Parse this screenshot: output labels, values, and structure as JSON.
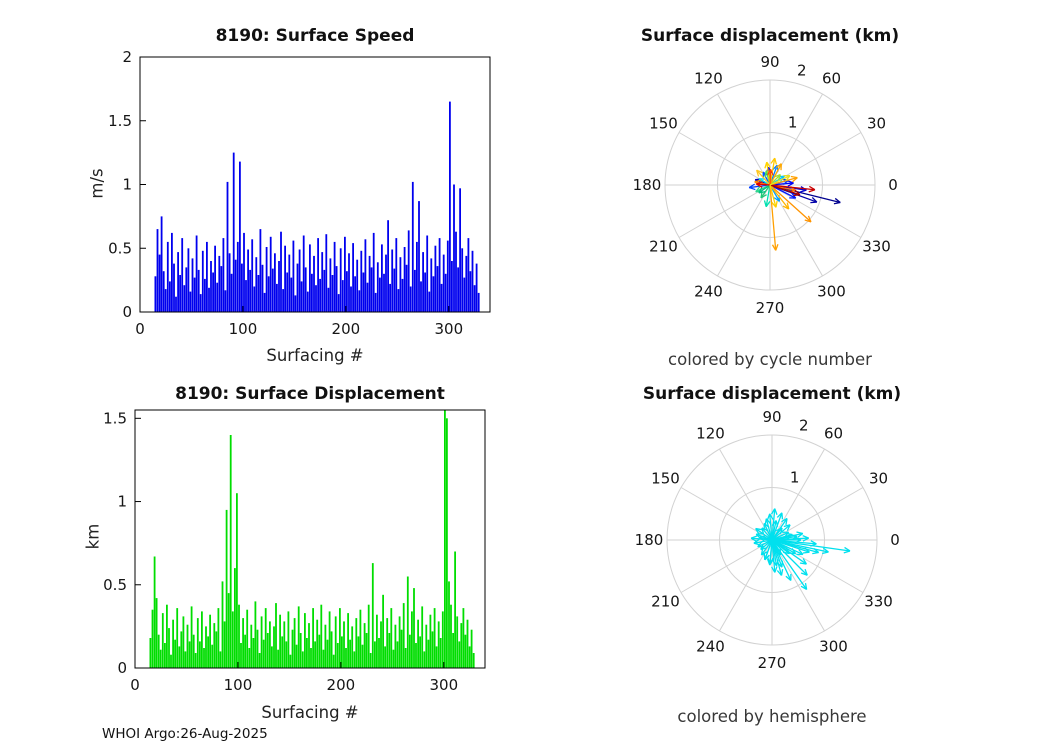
{
  "figure": {
    "footer": "WHOI Argo:26-Aug-2025",
    "background": "#FFFFFF"
  },
  "chart_data": [
    {
      "id": "surface-speed",
      "type": "bar",
      "title": "8190: Surface Speed",
      "xlabel": "Surfacing #",
      "ylabel": "m/s",
      "bar_color": "#0000EE",
      "xlim": [
        0,
        340
      ],
      "ylim": [
        0,
        2
      ],
      "xticks": [
        0,
        100,
        200,
        300
      ],
      "yticks": [
        0,
        0.5,
        1,
        1.5,
        2
      ],
      "x_start": 15,
      "x_step": 2,
      "values": [
        0.28,
        0.65,
        0.45,
        0.75,
        0.32,
        0.18,
        0.55,
        0.24,
        0.62,
        0.38,
        0.12,
        0.47,
        0.29,
        0.58,
        0.21,
        0.35,
        0.5,
        0.16,
        0.42,
        0.27,
        0.6,
        0.33,
        0.14,
        0.48,
        0.26,
        0.55,
        0.19,
        0.4,
        0.31,
        0.52,
        0.23,
        0.44,
        0.36,
        0.58,
        0.17,
        1.02,
        0.46,
        0.3,
        1.25,
        0.41,
        0.55,
        1.18,
        0.38,
        0.62,
        0.25,
        0.49,
        0.33,
        0.57,
        0.2,
        0.43,
        0.29,
        0.65,
        0.37,
        0.15,
        0.51,
        0.28,
        0.59,
        0.34,
        0.46,
        0.22,
        0.4,
        0.63,
        0.18,
        0.52,
        0.31,
        0.45,
        0.27,
        0.56,
        0.13,
        0.38,
        0.49,
        0.24,
        0.6,
        0.35,
        0.16,
        0.53,
        0.3,
        0.44,
        0.21,
        0.58,
        0.26,
        0.47,
        0.33,
        0.61,
        0.19,
        0.42,
        0.29,
        0.55,
        0.36,
        0.14,
        0.5,
        0.25,
        0.59,
        0.32,
        0.46,
        0.2,
        0.54,
        0.28,
        0.41,
        0.17,
        0.48,
        0.31,
        0.57,
        0.23,
        0.44,
        0.35,
        0.62,
        0.15,
        0.39,
        0.27,
        0.53,
        0.3,
        0.45,
        0.72,
        0.22,
        0.49,
        0.34,
        0.58,
        0.18,
        0.43,
        0.26,
        0.51,
        0.37,
        0.64,
        0.2,
        1.02,
        0.33,
        0.55,
        0.87,
        0.24,
        0.47,
        0.31,
        0.6,
        0.16,
        0.42,
        0.28,
        0.52,
        0.36,
        0.58,
        0.22,
        0.45,
        0.3,
        0.56,
        1.65,
        0.4,
        1.0,
        0.63,
        0.35,
        0.97,
        0.5,
        0.27,
        0.44,
        0.58,
        0.32,
        0.48,
        0.21,
        0.38,
        0.15
      ]
    },
    {
      "id": "surface-displacement",
      "type": "bar",
      "title": "8190: Surface Displacement",
      "xlabel": "Surfacing #",
      "ylabel": "km",
      "bar_color": "#00DD00",
      "xlim": [
        0,
        340
      ],
      "ylim": [
        0,
        1.55
      ],
      "xticks": [
        0,
        100,
        200,
        300
      ],
      "yticks": [
        0,
        0.5,
        1,
        1.5
      ],
      "x_start": 15,
      "x_step": 2,
      "values": [
        0.18,
        0.35,
        0.67,
        0.42,
        0.2,
        0.11,
        0.33,
        0.15,
        0.38,
        0.24,
        0.08,
        0.29,
        0.17,
        0.36,
        0.13,
        0.22,
        0.31,
        0.1,
        0.26,
        0.16,
        0.37,
        0.2,
        0.09,
        0.3,
        0.16,
        0.34,
        0.12,
        0.25,
        0.19,
        0.32,
        0.14,
        0.27,
        0.22,
        0.36,
        0.1,
        0.52,
        0.28,
        0.95,
        0.45,
        1.4,
        0.34,
        0.6,
        1.05,
        0.38,
        0.15,
        0.3,
        0.2,
        0.35,
        0.12,
        0.26,
        0.18,
        0.4,
        0.23,
        0.09,
        0.31,
        0.17,
        0.36,
        0.21,
        0.28,
        0.13,
        0.25,
        0.39,
        0.11,
        0.32,
        0.19,
        0.28,
        0.16,
        0.34,
        0.08,
        0.23,
        0.3,
        0.14,
        0.37,
        0.21,
        0.1,
        0.33,
        0.18,
        0.27,
        0.12,
        0.36,
        0.16,
        0.29,
        0.2,
        0.38,
        0.11,
        0.26,
        0.17,
        0.34,
        0.22,
        0.08,
        0.31,
        0.15,
        0.36,
        0.19,
        0.28,
        0.12,
        0.33,
        0.17,
        0.25,
        0.1,
        0.3,
        0.19,
        0.35,
        0.14,
        0.27,
        0.21,
        0.38,
        0.09,
        0.63,
        0.16,
        0.32,
        0.18,
        0.28,
        0.44,
        0.13,
        0.3,
        0.21,
        0.36,
        0.11,
        0.26,
        0.16,
        0.31,
        0.23,
        0.39,
        0.12,
        0.55,
        0.2,
        0.34,
        0.48,
        0.15,
        0.29,
        0.19,
        0.37,
        0.1,
        0.26,
        0.17,
        0.32,
        0.22,
        0.36,
        0.13,
        0.28,
        0.18,
        0.34,
        1.55,
        1.5,
        0.52,
        0.38,
        0.21,
        0.7,
        0.31,
        0.16,
        0.27,
        0.36,
        0.2,
        0.29,
        0.13,
        0.23,
        0.09
      ]
    },
    {
      "id": "polar-by-cycle",
      "type": "polar-quiver",
      "title": "Surface displacement (km)",
      "caption": "colored by cycle number",
      "rmax": 2,
      "rticks": [
        1,
        2
      ],
      "angle_ticks": [
        0,
        30,
        60,
        90,
        120,
        150,
        180,
        210,
        240,
        270,
        300,
        330
      ],
      "arrows": [
        {
          "a": -14,
          "r": 1.38,
          "c": "#00008F"
        },
        {
          "a": -20,
          "r": 0.95,
          "c": "#0000A8"
        },
        {
          "a": -8,
          "r": 0.7,
          "c": "#0000D0"
        },
        {
          "a": -27,
          "r": 0.55,
          "c": "#0018FF"
        },
        {
          "a": 5,
          "r": 0.45,
          "c": "#0000F5"
        },
        {
          "a": 14,
          "r": 0.36,
          "c": "#0030FF"
        },
        {
          "a": 95,
          "r": 0.34,
          "c": "#0000FF"
        },
        {
          "a": 118,
          "r": 0.28,
          "c": "#0055FF"
        },
        {
          "a": 70,
          "r": 0.4,
          "c": "#0080FF"
        },
        {
          "a": 160,
          "r": 0.3,
          "c": "#0000C0"
        },
        {
          "a": 187,
          "r": 0.4,
          "c": "#0040FF"
        },
        {
          "a": -60,
          "r": 0.36,
          "c": "#00A0FF"
        },
        {
          "a": 32,
          "r": 0.32,
          "c": "#00C8FF"
        },
        {
          "a": 150,
          "r": 0.24,
          "c": "#00E0F0"
        },
        {
          "a": -100,
          "r": 0.42,
          "c": "#00E0B0"
        },
        {
          "a": 205,
          "r": 0.3,
          "c": "#30D890"
        },
        {
          "a": -125,
          "r": 0.3,
          "c": "#20C878"
        },
        {
          "a": 105,
          "r": 0.28,
          "c": "#50E050"
        },
        {
          "a": -145,
          "r": 0.26,
          "c": "#00C080"
        },
        {
          "a": 45,
          "r": 0.28,
          "c": "#A0E030"
        },
        {
          "a": 80,
          "r": 0.52,
          "c": "#FFC800"
        },
        {
          "a": 62,
          "r": 0.46,
          "c": "#FFA800"
        },
        {
          "a": 98,
          "r": 0.44,
          "c": "#FFD400"
        },
        {
          "a": -85,
          "r": 1.25,
          "c": "#FFA000"
        },
        {
          "a": -42,
          "r": 1.05,
          "c": "#FF9400"
        },
        {
          "a": -52,
          "r": 0.58,
          "c": "#FFB400"
        },
        {
          "a": 132,
          "r": 0.38,
          "c": "#FFC820"
        },
        {
          "a": 168,
          "r": 0.3,
          "c": "#FF8800"
        },
        {
          "a": 15,
          "r": 0.54,
          "c": "#FFA000"
        },
        {
          "a": -12,
          "r": 0.5,
          "c": "#FF7400"
        },
        {
          "a": -6,
          "r": 0.86,
          "c": "#C80000"
        },
        {
          "a": -18,
          "r": 0.6,
          "c": "#A80000"
        },
        {
          "a": 176,
          "r": 0.26,
          "c": "#E00000"
        },
        {
          "a": 88,
          "r": 0.3,
          "c": "#FF4400"
        },
        {
          "a": -75,
          "r": 0.44,
          "c": "#FFD000"
        },
        {
          "a": 25,
          "r": 0.42,
          "c": "#E8E020"
        }
      ]
    },
    {
      "id": "polar-by-hemisphere",
      "type": "polar-quiver",
      "title": "Surface displacement (km)",
      "caption": "colored by hemisphere",
      "rmax": 2,
      "rticks": [
        1,
        2
      ],
      "angle_ticks": [
        0,
        30,
        60,
        90,
        120,
        150,
        180,
        210,
        240,
        270,
        300,
        330
      ],
      "arrow_color": "#00E0EE",
      "arrows": [
        {
          "a": -8,
          "r": 1.5
        },
        {
          "a": -12,
          "r": 1.1
        },
        {
          "a": -55,
          "r": 1.15
        },
        {
          "a": -65,
          "r": 0.85
        },
        {
          "a": -75,
          "r": 0.7
        },
        {
          "a": -35,
          "r": 0.8
        },
        {
          "a": -25,
          "r": 0.65
        },
        {
          "a": 0,
          "r": 0.55
        },
        {
          "a": 8,
          "r": 0.48
        },
        {
          "a": 15,
          "r": 0.4
        },
        {
          "a": 25,
          "r": 0.35
        },
        {
          "a": 40,
          "r": 0.45
        },
        {
          "a": 55,
          "r": 0.5
        },
        {
          "a": 70,
          "r": 0.55
        },
        {
          "a": 85,
          "r": 0.6
        },
        {
          "a": 95,
          "r": 0.5
        },
        {
          "a": 105,
          "r": 0.42
        },
        {
          "a": 115,
          "r": 0.35
        },
        {
          "a": 130,
          "r": 0.3
        },
        {
          "a": 145,
          "r": 0.38
        },
        {
          "a": 160,
          "r": 0.32
        },
        {
          "a": 175,
          "r": 0.4
        },
        {
          "a": 190,
          "r": 0.35
        },
        {
          "a": 205,
          "r": 0.3
        },
        {
          "a": 220,
          "r": 0.28
        },
        {
          "a": 235,
          "r": 0.35
        },
        {
          "a": 250,
          "r": 0.4
        },
        {
          "a": 265,
          "r": 0.45
        },
        {
          "a": 280,
          "r": 0.5
        },
        {
          "a": -45,
          "r": 0.95
        },
        {
          "a": -18,
          "r": 0.75
        },
        {
          "a": -30,
          "r": 0.52
        },
        {
          "a": -5,
          "r": 0.85
        },
        {
          "a": 3,
          "r": 0.7
        },
        {
          "a": -70,
          "r": 0.55
        },
        {
          "a": -85,
          "r": 0.62
        },
        {
          "a": -95,
          "r": 0.48
        },
        {
          "a": -110,
          "r": 0.4
        },
        {
          "a": 50,
          "r": 0.3
        },
        {
          "a": 12,
          "r": 0.6
        },
        {
          "a": -38,
          "r": 0.42
        },
        {
          "a": 78,
          "r": 0.38
        },
        {
          "a": 168,
          "r": 0.25
        },
        {
          "a": -60,
          "r": 0.33
        },
        {
          "a": -15,
          "r": 0.92
        }
      ]
    }
  ]
}
